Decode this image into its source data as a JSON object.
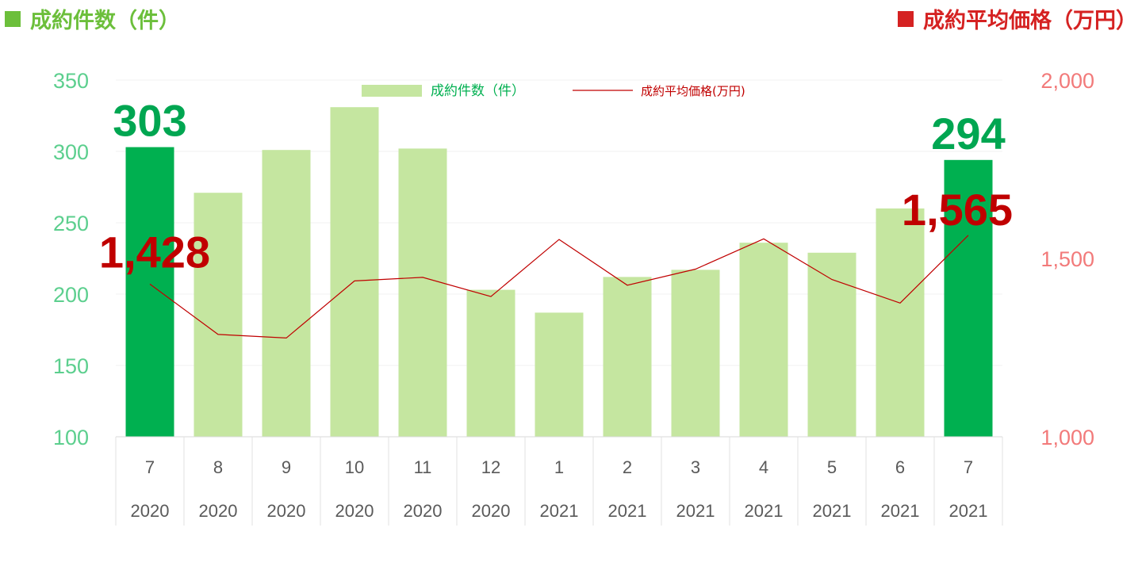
{
  "header": {
    "left_title": "成約件数（件）",
    "right_title": "成約平均価格（万円）"
  },
  "colors": {
    "bar_highlight": "#00b050",
    "bar_normal": "#c5e6a0",
    "line": "#c00000",
    "left_axis": "#5ccf8e",
    "right_axis": "#f27a7a",
    "left_header": "#6cbf3b",
    "right_header": "#d52222"
  },
  "chart_data": {
    "type": "bar",
    "categories": [
      "7",
      "8",
      "9",
      "10",
      "11",
      "12",
      "1",
      "2",
      "3",
      "4",
      "5",
      "6",
      "7"
    ],
    "years": [
      "2020",
      "2020",
      "2020",
      "2020",
      "2020",
      "2020",
      "2021",
      "2021",
      "2021",
      "2021",
      "2021",
      "2021",
      "2021"
    ],
    "series": [
      {
        "name": "成約件数（件）",
        "type": "bar",
        "axis": "left",
        "values": [
          303,
          271,
          301,
          331,
          302,
          203,
          187,
          212,
          217,
          236,
          229,
          260,
          294
        ],
        "highlight": [
          true,
          false,
          false,
          false,
          false,
          false,
          false,
          false,
          false,
          false,
          false,
          false,
          true
        ]
      },
      {
        "name": "成約平均価格(万円)",
        "type": "line",
        "axis": "right",
        "values": [
          1428,
          1287,
          1277,
          1437,
          1447,
          1393,
          1553,
          1425,
          1470,
          1555,
          1441,
          1375,
          1565
        ]
      }
    ],
    "ylim_left": [
      100,
      350
    ],
    "yticks_left": [
      "100",
      "150",
      "200",
      "250",
      "300",
      "350"
    ],
    "ylim_right": [
      1000,
      2000
    ],
    "yticks_right": [
      "1,000",
      "1,500",
      "2,000"
    ],
    "data_labels": {
      "first_count": "303",
      "last_count": "294",
      "first_price": "1,428",
      "last_price": "1,565"
    },
    "legend": {
      "count_label": "成約件数（件）",
      "price_label": "成約平均価格(万円)",
      "position": "top-center"
    },
    "grid": true
  }
}
